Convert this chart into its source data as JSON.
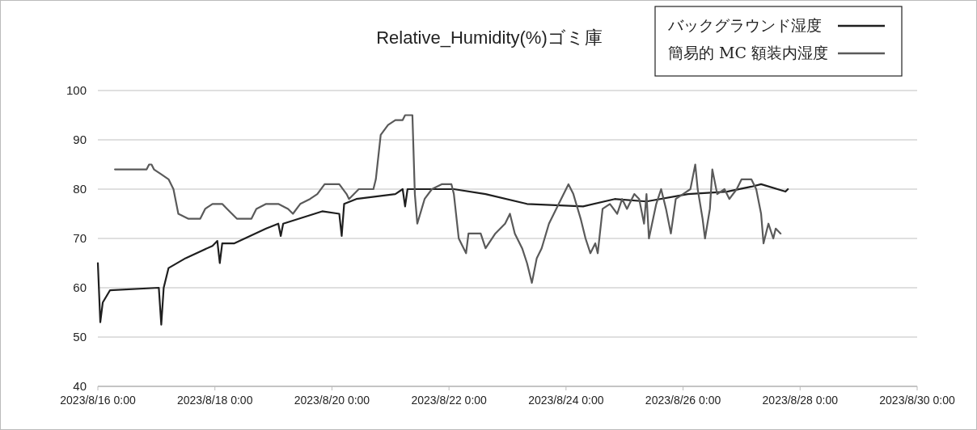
{
  "chart_data": {
    "type": "line",
    "title": "Relative_Humidity(%)ゴミ庫",
    "xlim": [
      "2023-08-16T00:00",
      "2023-08-30T00:00"
    ],
    "xticks": [
      {
        "value": "2023-08-16T00:00",
        "label": "2023/8/16 0:00"
      },
      {
        "value": "2023-08-18T00:00",
        "label": "2023/8/18 0:00"
      },
      {
        "value": "2023-08-20T00:00",
        "label": "2023/8/20 0:00"
      },
      {
        "value": "2023-08-22T00:00",
        "label": "2023/8/22 0:00"
      },
      {
        "value": "2023-08-24T00:00",
        "label": "2023/8/24 0:00"
      },
      {
        "value": "2023-08-26T00:00",
        "label": "2023/8/26 0:00"
      },
      {
        "value": "2023-08-28T00:00",
        "label": "2023/8/28 0:00"
      },
      {
        "value": "2023-08-30T00:00",
        "label": "2023/8/30 0:00"
      }
    ],
    "ylim": [
      40,
      100
    ],
    "yticks": [
      40,
      50,
      60,
      70,
      80,
      90,
      100
    ],
    "grid": "y",
    "legend": "top right",
    "line_style": "solid",
    "marker": "none",
    "series": [
      {
        "name": "バックグラウンド湿度",
        "color": "#1f1f1f",
        "x": [
          "2023-08-16T00:00",
          "2023-08-16T01:00",
          "2023-08-16T02:00",
          "2023-08-16T05:00",
          "2023-08-17T01:00",
          "2023-08-17T02:00",
          "2023-08-17T03:00",
          "2023-08-17T05:00",
          "2023-08-17T12:00",
          "2023-08-17T23:00",
          "2023-08-18T01:00",
          "2023-08-18T02:00",
          "2023-08-18T03:00",
          "2023-08-18T08:00",
          "2023-08-18T21:00",
          "2023-08-19T02:00",
          "2023-08-19T03:00",
          "2023-08-19T04:00",
          "2023-08-19T20:00",
          "2023-08-20T03:00",
          "2023-08-20T04:00",
          "2023-08-20T05:00",
          "2023-08-20T10:00",
          "2023-08-21T02:00",
          "2023-08-21T05:00",
          "2023-08-21T06:00",
          "2023-08-21T07:00",
          "2023-08-22T02:00",
          "2023-08-22T15:00",
          "2023-08-23T08:00",
          "2023-08-24T07:00",
          "2023-08-24T20:00",
          "2023-08-25T09:00",
          "2023-08-26T02:00",
          "2023-08-26T18:00",
          "2023-08-27T04:00",
          "2023-08-27T08:00",
          "2023-08-27T18:00",
          "2023-08-27T19:00"
        ],
        "values": [
          65,
          53,
          57,
          59.5,
          60,
          52.5,
          60,
          64,
          66,
          68.5,
          69.5,
          65,
          69,
          69,
          72,
          73,
          70.5,
          73,
          75.5,
          75,
          70.5,
          77,
          78,
          79,
          80,
          76.5,
          80,
          80,
          79,
          77,
          76.5,
          78,
          77.5,
          79,
          79.5,
          80.5,
          81,
          79.5,
          80
        ]
      },
      {
        "name": "簡易的 MC 額装内湿度",
        "color": "#5a5a5a",
        "x": [
          "2023-08-16T07:00",
          "2023-08-16T20:00",
          "2023-08-16T21:00",
          "2023-08-16T22:00",
          "2023-08-16T23:00",
          "2023-08-17T02:00",
          "2023-08-17T05:00",
          "2023-08-17T07:00",
          "2023-08-17T09:00",
          "2023-08-17T13:00",
          "2023-08-17T18:00",
          "2023-08-17T20:00",
          "2023-08-17T23:00",
          "2023-08-18T03:00",
          "2023-08-18T05:00",
          "2023-08-18T09:00",
          "2023-08-18T15:00",
          "2023-08-18T17:00",
          "2023-08-18T21:00",
          "2023-08-19T02:00",
          "2023-08-19T06:00",
          "2023-08-19T08:00",
          "2023-08-19T11:00",
          "2023-08-19T15:00",
          "2023-08-19T18:00",
          "2023-08-19T21:00",
          "2023-08-20T03:00",
          "2023-08-20T06:00",
          "2023-08-20T07:00",
          "2023-08-20T11:00",
          "2023-08-20T17:00",
          "2023-08-20T18:00",
          "2023-08-20T20:00",
          "2023-08-20T23:00",
          "2023-08-21T02:00",
          "2023-08-21T05:00",
          "2023-08-21T06:00",
          "2023-08-21T09:00",
          "2023-08-21T10:00",
          "2023-08-21T11:00",
          "2023-08-21T14:00",
          "2023-08-21T17:00",
          "2023-08-21T21:00",
          "2023-08-22T01:00",
          "2023-08-22T02:00",
          "2023-08-22T04:00",
          "2023-08-22T07:00",
          "2023-08-22T08:00",
          "2023-08-22T13:00",
          "2023-08-22T15:00",
          "2023-08-22T19:00",
          "2023-08-22T23:00",
          "2023-08-23T01:00",
          "2023-08-23T03:00",
          "2023-08-23T06:00",
          "2023-08-23T08:00",
          "2023-08-23T10:00",
          "2023-08-23T12:00",
          "2023-08-23T14:00",
          "2023-08-23T17:00",
          "2023-08-23T21:00",
          "2023-08-24T01:00",
          "2023-08-24T03:00",
          "2023-08-24T06:00",
          "2023-08-24T08:00",
          "2023-08-24T10:00",
          "2023-08-24T12:00",
          "2023-08-24T13:00",
          "2023-08-24T15:00",
          "2023-08-24T18:00",
          "2023-08-24T21:00",
          "2023-08-24T23:00",
          "2023-08-25T01:00",
          "2023-08-25T04:00",
          "2023-08-25T06:00",
          "2023-08-25T08:00",
          "2023-08-25T09:00",
          "2023-08-25T10:00",
          "2023-08-25T13:00",
          "2023-08-25T15:00",
          "2023-08-25T17:00",
          "2023-08-25T19:00",
          "2023-08-25T21:00",
          "2023-08-26T00:00",
          "2023-08-26T03:00",
          "2023-08-26T05:00",
          "2023-08-26T06:00",
          "2023-08-26T08:00",
          "2023-08-26T09:00",
          "2023-08-26T11:00",
          "2023-08-26T12:00",
          "2023-08-26T14:00",
          "2023-08-26T17:00",
          "2023-08-26T19:00",
          "2023-08-26T22:00",
          "2023-08-27T00:00",
          "2023-08-27T04:00",
          "2023-08-27T06:00",
          "2023-08-27T08:00",
          "2023-08-27T09:00",
          "2023-08-27T11:00",
          "2023-08-27T13:00",
          "2023-08-27T14:00",
          "2023-08-27T16:00"
        ],
        "values": [
          84,
          84,
          85,
          85,
          84,
          83,
          82,
          80,
          75,
          74,
          74,
          76,
          77,
          77,
          76,
          74,
          74,
          76,
          77,
          77,
          76,
          75,
          77,
          78,
          79,
          81,
          81,
          79,
          78,
          80,
          80,
          82,
          91,
          93,
          94,
          94,
          95,
          95,
          79,
          73,
          78,
          80,
          81,
          81,
          79,
          70,
          67,
          71,
          71,
          68,
          71,
          73,
          75,
          71,
          68,
          65,
          61,
          66,
          68,
          73,
          77,
          81,
          79,
          74,
          70,
          67,
          69,
          67,
          76,
          77,
          75,
          78,
          76,
          79,
          78,
          73,
          79,
          70,
          77,
          80,
          76,
          71,
          78,
          79,
          80,
          85,
          80,
          74,
          70,
          76,
          84,
          79,
          80,
          78,
          80,
          82,
          82,
          80,
          75,
          69,
          73,
          70,
          72,
          71
        ]
      }
    ]
  }
}
